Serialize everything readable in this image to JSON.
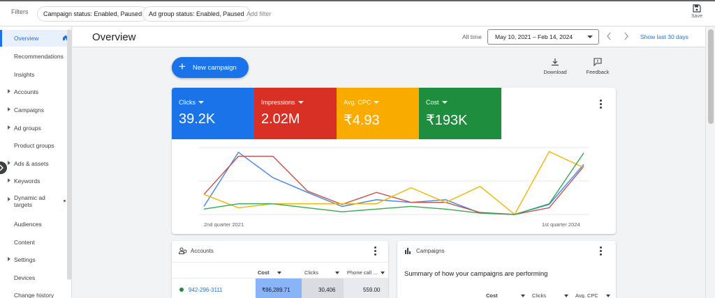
{
  "filters": {
    "label": "Filters",
    "chips": [
      "Campaign status: Enabled, Paused",
      "Ad group status: Enabled, Paused"
    ],
    "add_filter": "Add filter",
    "save_label": "Save"
  },
  "sidebar": {
    "items": [
      {
        "label": "Overview",
        "active": true,
        "caret": false
      },
      {
        "label": "Recommendations",
        "caret": false
      },
      {
        "label": "Insights",
        "caret": false
      },
      {
        "label": "Accounts",
        "caret": true
      },
      {
        "label": "Campaigns",
        "caret": true
      },
      {
        "label": "Ad groups",
        "caret": true
      },
      {
        "label": "Product groups",
        "caret": false
      },
      {
        "label": "Ads & assets",
        "caret": true
      },
      {
        "label": "Keywords",
        "caret": true
      },
      {
        "label": "Dynamic ad targets",
        "caret": true
      },
      {
        "label": "Audiences",
        "caret": false
      },
      {
        "label": "Content",
        "caret": false
      },
      {
        "label": "Settings",
        "caret": true
      },
      {
        "label": "Devices",
        "caret": false
      },
      {
        "label": "Change history",
        "caret": false
      }
    ]
  },
  "header": {
    "title": "Overview",
    "range_label": "All time",
    "date_range": "May 10, 2021 – Feb 14, 2024",
    "show_last": "Show last 30 days"
  },
  "actions": {
    "new_campaign": "New campaign",
    "download": "Download",
    "feedback": "Feedback"
  },
  "metrics": [
    {
      "name": "Clicks",
      "value": "39.2K",
      "color": "#1a73e8"
    },
    {
      "name": "Impressions",
      "value": "2.02M",
      "color": "#d93025"
    },
    {
      "name": "Avg. CPC",
      "value": "₹4.93",
      "color": "#f9ab00"
    },
    {
      "name": "Cost",
      "value": "₹193K",
      "color": "#1e8e3e"
    }
  ],
  "chart_data": {
    "type": "line",
    "x": [
      1,
      2,
      3,
      4,
      5,
      6,
      7,
      8,
      9,
      10,
      11,
      12
    ],
    "x_tick_labels": [
      "2nd quarter 2021",
      "1st quarter 2024"
    ],
    "ylim": [
      0,
      100
    ],
    "grid": true,
    "series": [
      {
        "name": "Clicks",
        "color": "#4285f4",
        "values": [
          12,
          93,
          55,
          33,
          12,
          22,
          18,
          22,
          2,
          0,
          15,
          75
        ]
      },
      {
        "name": "Impressions",
        "color": "#c5504b",
        "values": [
          30,
          87,
          87,
          35,
          15,
          33,
          18,
          18,
          3,
          0,
          10,
          72
        ]
      },
      {
        "name": "Avg. CPC",
        "color": "#f4b400",
        "values": [
          30,
          10,
          16,
          16,
          16,
          16,
          40,
          18,
          42,
          0,
          94,
          70
        ]
      },
      {
        "name": "Cost",
        "color": "#34a853",
        "values": [
          8,
          16,
          16,
          10,
          4,
          8,
          12,
          8,
          2,
          0,
          16,
          92
        ]
      }
    ]
  },
  "accounts_card": {
    "title": "Accounts",
    "columns": [
      "Cost",
      "Clicks",
      "Phone call ..."
    ],
    "rows": [
      {
        "account": "942-296-3111",
        "cost": "₹86,289.71",
        "clicks": "30,406",
        "phone": "559.00"
      }
    ]
  },
  "campaigns_card": {
    "title": "Campaigns",
    "summary": "Summary of how your campaigns are performing",
    "columns": [
      "Cost",
      "Clicks",
      "Avg. CPC"
    ]
  }
}
